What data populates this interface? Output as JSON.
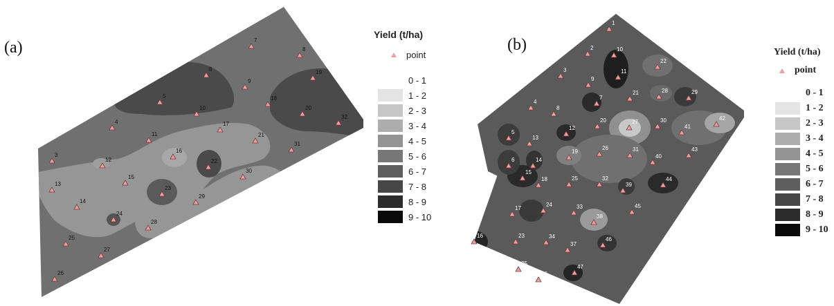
{
  "panels": [
    {
      "id": "a",
      "label": "(a)",
      "legend": {
        "title": "Yield (t/ha)",
        "point_label": "point",
        "classes": [
          {
            "label": "0 - 1",
            "color": "#ffffff"
          },
          {
            "label": "1 - 2",
            "color": "#e4e4e4"
          },
          {
            "label": "2 - 3",
            "color": "#c6c6c6"
          },
          {
            "label": "3 - 4",
            "color": "#adadad"
          },
          {
            "label": "4 - 5",
            "color": "#939393"
          },
          {
            "label": "5 - 6",
            "color": "#777777"
          },
          {
            "label": "6 - 7",
            "color": "#5e5e5e"
          },
          {
            "label": "7 - 8",
            "color": "#474747"
          },
          {
            "label": "8 - 9",
            "color": "#2c2c2c"
          },
          {
            "label": "9 - 10",
            "color": "#0a0a0a"
          }
        ]
      },
      "points": [
        "3",
        "4",
        "5",
        "6",
        "7",
        "8",
        "9",
        "10",
        "11",
        "12",
        "13",
        "14",
        "15",
        "16",
        "17",
        "18",
        "19",
        "20",
        "21",
        "22",
        "23",
        "24",
        "25",
        "26",
        "27",
        "28",
        "29",
        "30",
        "31",
        "32"
      ]
    },
    {
      "id": "b",
      "label": "(b)",
      "legend": {
        "title": "Yield (t/ha)",
        "point_label": "point",
        "classes": [
          {
            "label": "0 - 1",
            "color": "#ffffff"
          },
          {
            "label": "1 - 2",
            "color": "#e4e4e4"
          },
          {
            "label": "2 - 3",
            "color": "#c6c6c6"
          },
          {
            "label": "3 - 4",
            "color": "#adadad"
          },
          {
            "label": "4 - 5",
            "color": "#939393"
          },
          {
            "label": "5 - 6",
            "color": "#777777"
          },
          {
            "label": "6 - 7",
            "color": "#5e5e5e"
          },
          {
            "label": "7 - 8",
            "color": "#474747"
          },
          {
            "label": "8 - 9",
            "color": "#2c2c2c"
          },
          {
            "label": "9 - 10",
            "color": "#0a0a0a"
          }
        ]
      },
      "points": [
        "1",
        "2",
        "3",
        "4",
        "5",
        "6",
        "7",
        "8",
        "9",
        "10",
        "11",
        "12",
        "13",
        "14",
        "15",
        "16",
        "17",
        "18",
        "19",
        "20",
        "21",
        "22",
        "23",
        "24",
        "25",
        "26",
        "27",
        "28",
        "29",
        "30",
        "31",
        "32",
        "33",
        "34",
        "35",
        "36",
        "37",
        "38",
        "39",
        "40",
        "41",
        "42",
        "43",
        "44",
        "45",
        "46",
        "47"
      ]
    }
  ],
  "colors": {
    "point_marker": "#e9a1a6",
    "point_outline": "#7a3a3a"
  }
}
